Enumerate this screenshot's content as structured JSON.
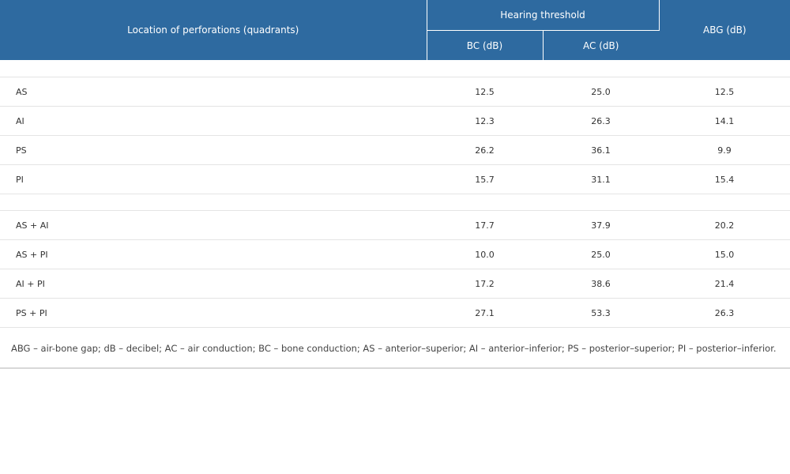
{
  "table": {
    "headers": {
      "location": "Location of perforations (quadrants)",
      "hearing_threshold": "Hearing threshold",
      "bc": "BC (dB)",
      "ac": "AC (dB)",
      "abg": "ABG (dB)"
    },
    "rows": [
      {
        "label": "AS",
        "bc": "12.5",
        "ac": "25.0",
        "abg": "12.5"
      },
      {
        "label": "AI",
        "bc": "12.3",
        "ac": "26.3",
        "abg": "14.1"
      },
      {
        "label": "PS",
        "bc": "26.2",
        "ac": "36.1",
        "abg": "9.9"
      },
      {
        "label": "PI",
        "bc": "15.7",
        "ac": "31.1",
        "abg": "15.4"
      },
      {
        "label": "AS + AI",
        "bc": "17.7",
        "ac": "37.9",
        "abg": "20.2"
      },
      {
        "label": "AS + PI",
        "bc": "10.0",
        "ac": "25.0",
        "abg": "15.0"
      },
      {
        "label": "AI + PI",
        "bc": "17.2",
        "ac": "38.6",
        "abg": "21.4"
      },
      {
        "label": "PS + PI",
        "bc": "27.1",
        "ac": "53.3",
        "abg": "26.3"
      }
    ],
    "footnote": "ABG – air-bone gap; dB – decibel; AC – air conduction; BC – bone conduction; AS – anterior–superior; AI – anterior–inferior; PS – posterior–superior; PI – posterior–inferior.",
    "header_color": "#2e6aa0"
  }
}
